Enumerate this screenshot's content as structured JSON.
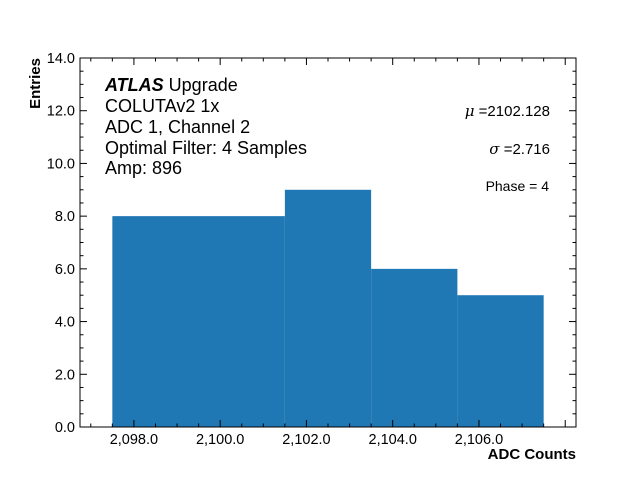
{
  "chart_data": {
    "type": "bar",
    "style": "histogram",
    "bar_color": "#1f77b4",
    "bins": [
      {
        "start": 2097.5,
        "end": 2101.5,
        "value": 8
      },
      {
        "start": 2101.5,
        "end": 2103.5,
        "value": 9
      },
      {
        "start": 2103.5,
        "end": 2105.5,
        "value": 6
      },
      {
        "start": 2105.5,
        "end": 2107.5,
        "value": 5
      }
    ],
    "xlim": [
      2096.75,
      2108.25
    ],
    "ylim": [
      0,
      14
    ],
    "xticks": [
      2098,
      2100,
      2102,
      2104,
      2106
    ],
    "xtick_labels": [
      "2,098.0",
      "2,100.0",
      "2,102.0",
      "2,104.0",
      "2,106.0"
    ],
    "yticks": [
      0,
      2,
      4,
      6,
      8,
      10,
      12,
      14
    ],
    "ytick_labels": [
      "0.0",
      "2.0",
      "4.0",
      "6.0",
      "8.0",
      "10.0",
      "12.0",
      "14.0"
    ],
    "xlabel": "ADC Counts",
    "ylabel": "Entries",
    "grid": false,
    "annotations": {
      "atlas_bold": "ATLAS",
      "atlas_rest": " Upgrade",
      "lines": [
        "COLUTAv2 1x",
        "ADC 1, Channel 2",
        "Optimal Filter: 4 Samples",
        "Amp: 896"
      ],
      "mu_symbol": "μ",
      "mu_text": " =2102.128",
      "sigma_symbol": "σ",
      "sigma_text": " =2.716",
      "phase": "Phase = 4"
    }
  }
}
